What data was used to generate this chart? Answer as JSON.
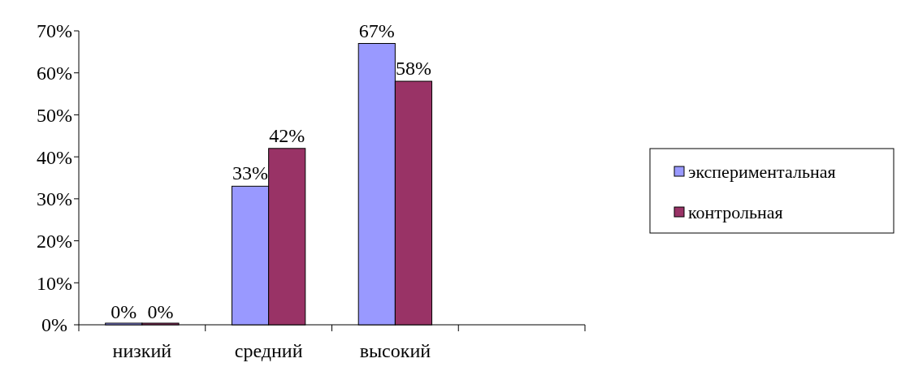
{
  "chart_data": {
    "type": "bar",
    "categories": [
      "низкий",
      "средний",
      "высокий",
      null
    ],
    "series": [
      {
        "name": "экспериментальная",
        "color": "#9999ff",
        "values": [
          0,
          33,
          67,
          null
        ],
        "value_labels": [
          "0%",
          "33%",
          "67%",
          null
        ]
      },
      {
        "name": "контрольная",
        "color": "#993366",
        "values": [
          0,
          42,
          58,
          null
        ],
        "value_labels": [
          "0%",
          "42%",
          "58%",
          null
        ]
      }
    ],
    "ylim": [
      0,
      70
    ],
    "yticks": [
      {
        "value": 0,
        "label": "0%"
      },
      {
        "value": 10,
        "label": "10%"
      },
      {
        "value": 20,
        "label": "20%"
      },
      {
        "value": 30,
        "label": "30%"
      },
      {
        "value": 40,
        "label": "40%"
      },
      {
        "value": 50,
        "label": "50%"
      },
      {
        "value": 60,
        "label": "60%"
      },
      {
        "value": 70,
        "label": "70%"
      }
    ],
    "grid": false,
    "legend": "right"
  }
}
